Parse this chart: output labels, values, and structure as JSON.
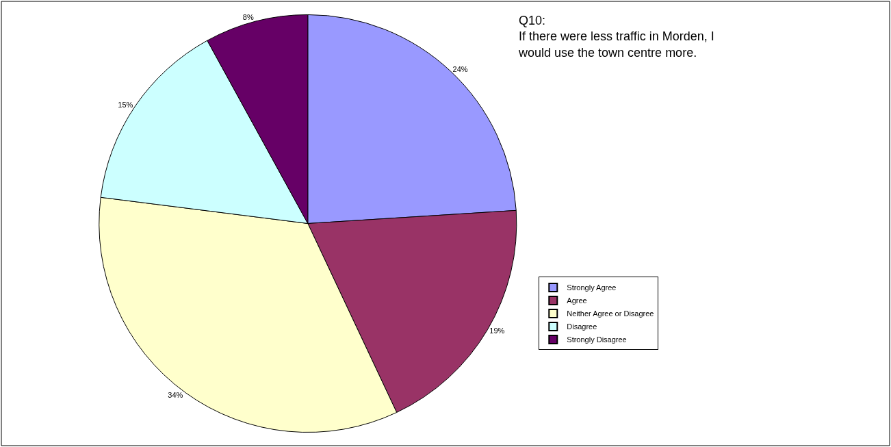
{
  "chart_data": {
    "type": "pie",
    "title": "Q10:\nIf there were less traffic in Morden, I\nwould use the town centre more.",
    "categories": [
      "Strongly Agree",
      "Agree",
      "Neither Agree or Disagree",
      "Disagree",
      "Strongly Disagree"
    ],
    "values": [
      24,
      19,
      34,
      15,
      8
    ],
    "value_labels": [
      "24%",
      "19%",
      "34%",
      "15%",
      "8%"
    ],
    "colors": [
      "#9999ff",
      "#993366",
      "#ffffcc",
      "#ccffff",
      "#660066"
    ],
    "legend": "right"
  }
}
